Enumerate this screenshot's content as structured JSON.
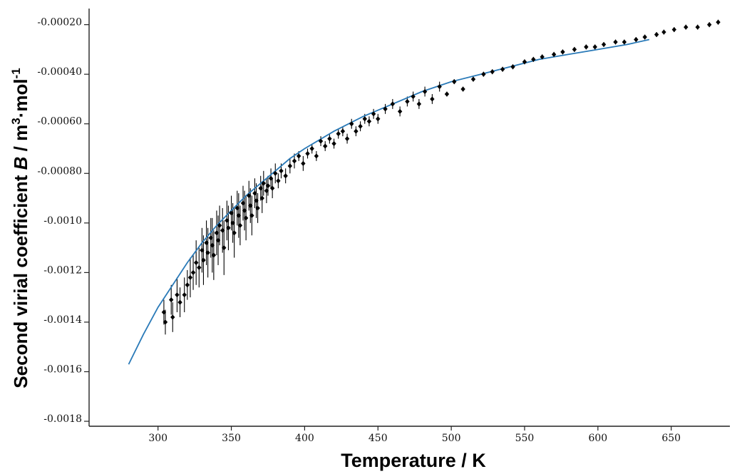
{
  "chart_data": {
    "type": "scatter",
    "title": "",
    "xlabel": "Temperature / K",
    "ylabel": {
      "prefix": "Second virial coefficient ",
      "symbol": "B",
      "unit_main": " / m",
      "unit_sup1": "3",
      "unit_mid": "·mol",
      "unit_sup2": "-1"
    },
    "xlim": [
      253,
      690
    ],
    "ylim": [
      -0.00182,
      -0.000135
    ],
    "x_ticks": [
      300,
      350,
      400,
      450,
      500,
      550,
      600,
      650
    ],
    "x_tick_labels": [
      "300",
      "350",
      "400",
      "450",
      "500",
      "550",
      "600",
      "650"
    ],
    "y_ticks": [
      -0.0002,
      -0.0004,
      -0.0006,
      -0.0008,
      -0.001,
      -0.0012,
      -0.0014,
      -0.0016,
      -0.0018
    ],
    "y_tick_labels": [
      "-0.00020",
      "-0.00040",
      "-0.00060",
      "-0.00080",
      "-0.0010",
      "-0.0012",
      "-0.0014",
      "-0.0016",
      "-0.0018"
    ],
    "grid": false,
    "colors": {
      "fit_line": "#2a7ab8",
      "points": "#000000",
      "axes": "#222222"
    },
    "series": [
      {
        "kind": "fit",
        "x": [
          280,
          290,
          300,
          310,
          320,
          330,
          340,
          350,
          360,
          370,
          380,
          390,
          400,
          420,
          440,
          460,
          480,
          500,
          520,
          540,
          560,
          580,
          600,
          620,
          635
        ],
        "y": [
          -0.00157,
          -0.00145,
          -0.00134,
          -0.00125,
          -0.00116,
          -0.00108,
          -0.00101,
          -0.00095,
          -0.00089,
          -0.00084,
          -0.00079,
          -0.00074,
          -0.0007,
          -0.00063,
          -0.00057,
          -0.00052,
          -0.00047,
          -0.00043,
          -0.0004,
          -0.00037,
          -0.00034,
          -0.00032,
          -0.0003,
          -0.00028,
          -0.00026
        ]
      },
      {
        "kind": "data",
        "x": [
          304,
          305,
          309,
          310,
          313,
          315,
          318,
          320,
          322,
          324,
          326,
          328,
          330,
          331,
          333,
          334,
          336,
          337,
          338,
          340,
          341,
          342,
          344,
          345,
          347,
          348,
          350,
          351,
          352,
          354,
          355,
          356,
          358,
          359,
          360,
          362,
          363,
          364,
          366,
          367,
          368,
          370,
          371,
          372,
          374,
          375,
          377,
          378,
          380,
          382,
          384,
          387,
          390,
          393,
          396,
          399,
          402,
          405,
          408,
          411,
          414,
          417,
          420,
          423,
          426,
          429,
          432,
          435,
          438,
          441,
          444,
          447,
          450,
          455,
          460,
          465,
          470,
          474,
          478,
          482,
          487,
          492,
          497,
          502,
          508,
          515,
          522,
          528,
          535,
          542,
          550,
          556,
          562,
          570,
          576,
          584,
          592,
          598,
          604,
          612,
          618,
          626,
          632,
          640,
          645,
          652,
          660,
          668,
          676,
          682
        ],
        "y": [
          -0.00136,
          -0.0014,
          -0.00131,
          -0.00138,
          -0.00129,
          -0.00132,
          -0.00129,
          -0.00125,
          -0.00122,
          -0.0012,
          -0.00116,
          -0.00118,
          -0.00111,
          -0.00115,
          -0.00108,
          -0.00112,
          -0.00106,
          -0.00109,
          -0.00113,
          -0.00104,
          -0.00107,
          -0.00101,
          -0.00103,
          -0.0011,
          -0.00099,
          -0.00102,
          -0.00096,
          -0.001,
          -0.00104,
          -0.00094,
          -0.00097,
          -0.00101,
          -0.00092,
          -0.00095,
          -0.00098,
          -0.00089,
          -0.00093,
          -0.00097,
          -0.00088,
          -0.00091,
          -0.00094,
          -0.00086,
          -0.0009,
          -0.00084,
          -0.00087,
          -0.00085,
          -0.00082,
          -0.00086,
          -0.0008,
          -0.00083,
          -0.00079,
          -0.00081,
          -0.00077,
          -0.00075,
          -0.00073,
          -0.00076,
          -0.00072,
          -0.0007,
          -0.00073,
          -0.00067,
          -0.00069,
          -0.00066,
          -0.00068,
          -0.00064,
          -0.00063,
          -0.00066,
          -0.0006,
          -0.00063,
          -0.00061,
          -0.00058,
          -0.00059,
          -0.00056,
          -0.00058,
          -0.00054,
          -0.00052,
          -0.00055,
          -0.00051,
          -0.00049,
          -0.00052,
          -0.00047,
          -0.0005,
          -0.00045,
          -0.00048,
          -0.00043,
          -0.00046,
          -0.00042,
          -0.0004,
          -0.00039,
          -0.00038,
          -0.00037,
          -0.00035,
          -0.00034,
          -0.00033,
          -0.00032,
          -0.00031,
          -0.0003,
          -0.00029,
          -0.00029,
          -0.00028,
          -0.00027,
          -0.00027,
          -0.00026,
          -0.00025,
          -0.00024,
          -0.00023,
          -0.00022,
          -0.00021,
          -0.00021,
          -0.0002,
          -0.00019
        ],
        "yerr": [
          5e-05,
          5e-05,
          6e-05,
          6e-05,
          7e-05,
          6e-05,
          7e-05,
          6e-05,
          8e-05,
          7e-05,
          9e-05,
          8e-05,
          9e-05,
          0.0001,
          9e-05,
          0.0001,
          8e-05,
          0.00011,
          0.0001,
          9e-05,
          0.0001,
          8e-05,
          9e-05,
          0.00011,
          8e-05,
          9e-05,
          7e-05,
          8e-05,
          0.0001,
          7e-05,
          9e-05,
          8e-05,
          7e-05,
          8e-05,
          9e-05,
          6e-05,
          7e-05,
          8e-05,
          6e-05,
          7e-05,
          6e-05,
          5e-05,
          6e-05,
          5e-05,
          5e-05,
          4e-05,
          4e-05,
          4e-05,
          4e-05,
          3e-05,
          3e-05,
          3e-05,
          3e-05,
          3e-05,
          2e-05,
          3e-05,
          2e-05,
          2e-05,
          2e-05,
          2e-05,
          2e-05,
          2e-05,
          2e-05,
          2e-05,
          2e-05,
          2e-05,
          2e-05,
          2e-05,
          2e-05,
          2e-05,
          2e-05,
          2e-05,
          2e-05,
          2e-05,
          2e-05,
          2e-05,
          2e-05,
          2e-05,
          2e-05,
          2e-05,
          2e-05,
          2e-05,
          1e-05,
          1e-05,
          1e-05,
          1e-05,
          1e-05,
          1e-05,
          1e-05,
          1e-05,
          1e-05,
          1e-05,
          1e-05,
          1e-05,
          1e-05,
          1e-05,
          1e-05,
          1e-05,
          1e-05,
          1e-05,
          1e-05,
          1e-05,
          1e-05,
          1e-05,
          1e-05,
          1e-05,
          1e-05,
          1e-05,
          1e-05,
          1e-05
        ]
      }
    ]
  }
}
